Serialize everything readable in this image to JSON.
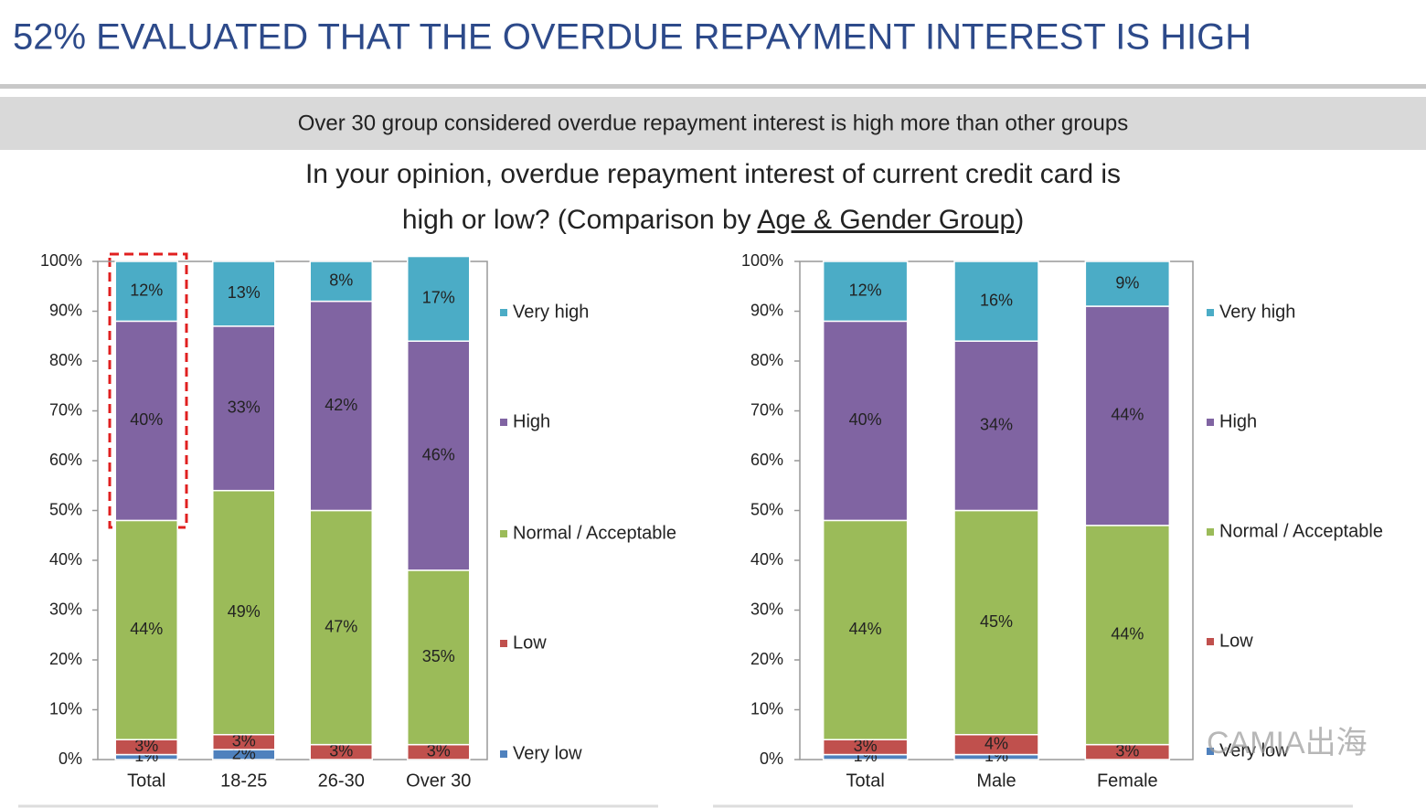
{
  "header": {
    "title": "52% EVALUATED THAT THE OVERDUE REPAYMENT INTEREST IS HIGH"
  },
  "banner": {
    "text": "Over 30 group considered overdue repayment interest is high more than other groups"
  },
  "question": {
    "line1": "In your opinion, overdue repayment interest of current credit card is",
    "line2_prefix": "high or low? (Comparison by ",
    "line2_underlined": "Age & Gender Group",
    "line2_suffix": ")"
  },
  "watermark": "CAMIA出海",
  "chart_data": [
    {
      "type": "stacked_bar",
      "categories": [
        "Total",
        "18-25",
        "26-30",
        "Over 30"
      ],
      "ylim": [
        0,
        100
      ],
      "yticks": [
        {
          "value": 0,
          "label": "0%"
        },
        {
          "value": 10,
          "label": "10%"
        },
        {
          "value": 20,
          "label": "20%"
        },
        {
          "value": 30,
          "label": "30%"
        },
        {
          "value": 40,
          "label": "40%"
        },
        {
          "value": 50,
          "label": "50%"
        },
        {
          "value": 60,
          "label": "60%"
        },
        {
          "value": 70,
          "label": "70%"
        },
        {
          "value": 80,
          "label": "80%"
        },
        {
          "value": 90,
          "label": "90%"
        },
        {
          "value": 100,
          "label": "100%"
        }
      ],
      "legend": "right",
      "series": [
        {
          "name": "Very low",
          "color": "#4f81bd",
          "values": [
            1,
            2,
            0,
            0
          ],
          "value_labels": [
            "1%",
            "2%",
            null,
            null
          ]
        },
        {
          "name": "Low",
          "color": "#c0504d",
          "values": [
            3,
            3,
            3,
            3
          ],
          "value_labels": [
            "3%",
            "3%",
            "3%",
            "3%"
          ]
        },
        {
          "name": "Normal / Acceptable",
          "color": "#9bbb59",
          "values": [
            44,
            49,
            47,
            35
          ],
          "value_labels": [
            "44%",
            "49%",
            "47%",
            "35%"
          ]
        },
        {
          "name": "High",
          "color": "#8064a2",
          "values": [
            40,
            33,
            42,
            46
          ],
          "value_labels": [
            "40%",
            "33%",
            "42%",
            "46%"
          ]
        },
        {
          "name": "Very high",
          "color": "#4bacc6",
          "values": [
            12,
            13,
            8,
            17
          ],
          "value_labels": [
            "12%",
            "13%",
            "8%",
            "17%"
          ]
        }
      ]
    },
    {
      "type": "stacked_bar",
      "categories": [
        "Total",
        "Male",
        "Female"
      ],
      "ylim": [
        0,
        100
      ],
      "yticks": [
        {
          "value": 0,
          "label": "0%"
        },
        {
          "value": 10,
          "label": "10%"
        },
        {
          "value": 20,
          "label": "20%"
        },
        {
          "value": 30,
          "label": "30%"
        },
        {
          "value": 40,
          "label": "40%"
        },
        {
          "value": 50,
          "label": "50%"
        },
        {
          "value": 60,
          "label": "60%"
        },
        {
          "value": 70,
          "label": "70%"
        },
        {
          "value": 80,
          "label": "80%"
        },
        {
          "value": 90,
          "label": "90%"
        },
        {
          "value": 100,
          "label": "100%"
        }
      ],
      "legend": "right",
      "series": [
        {
          "name": "Very low",
          "color": "#4f81bd",
          "values": [
            1,
            1,
            0
          ],
          "value_labels": [
            "1%",
            "1%",
            null
          ]
        },
        {
          "name": "Low",
          "color": "#c0504d",
          "values": [
            3,
            4,
            3
          ],
          "value_labels": [
            "3%",
            "4%",
            "3%"
          ]
        },
        {
          "name": "Normal / Acceptable",
          "color": "#9bbb59",
          "values": [
            44,
            45,
            44
          ],
          "value_labels": [
            "44%",
            "45%",
            "44%"
          ]
        },
        {
          "name": "High",
          "color": "#8064a2",
          "values": [
            40,
            34,
            44
          ],
          "value_labels": [
            "40%",
            "34%",
            "44%"
          ]
        },
        {
          "name": "Very high",
          "color": "#4bacc6",
          "values": [
            12,
            16,
            9
          ],
          "value_labels": [
            "12%",
            "16%",
            "9%"
          ]
        }
      ]
    }
  ]
}
